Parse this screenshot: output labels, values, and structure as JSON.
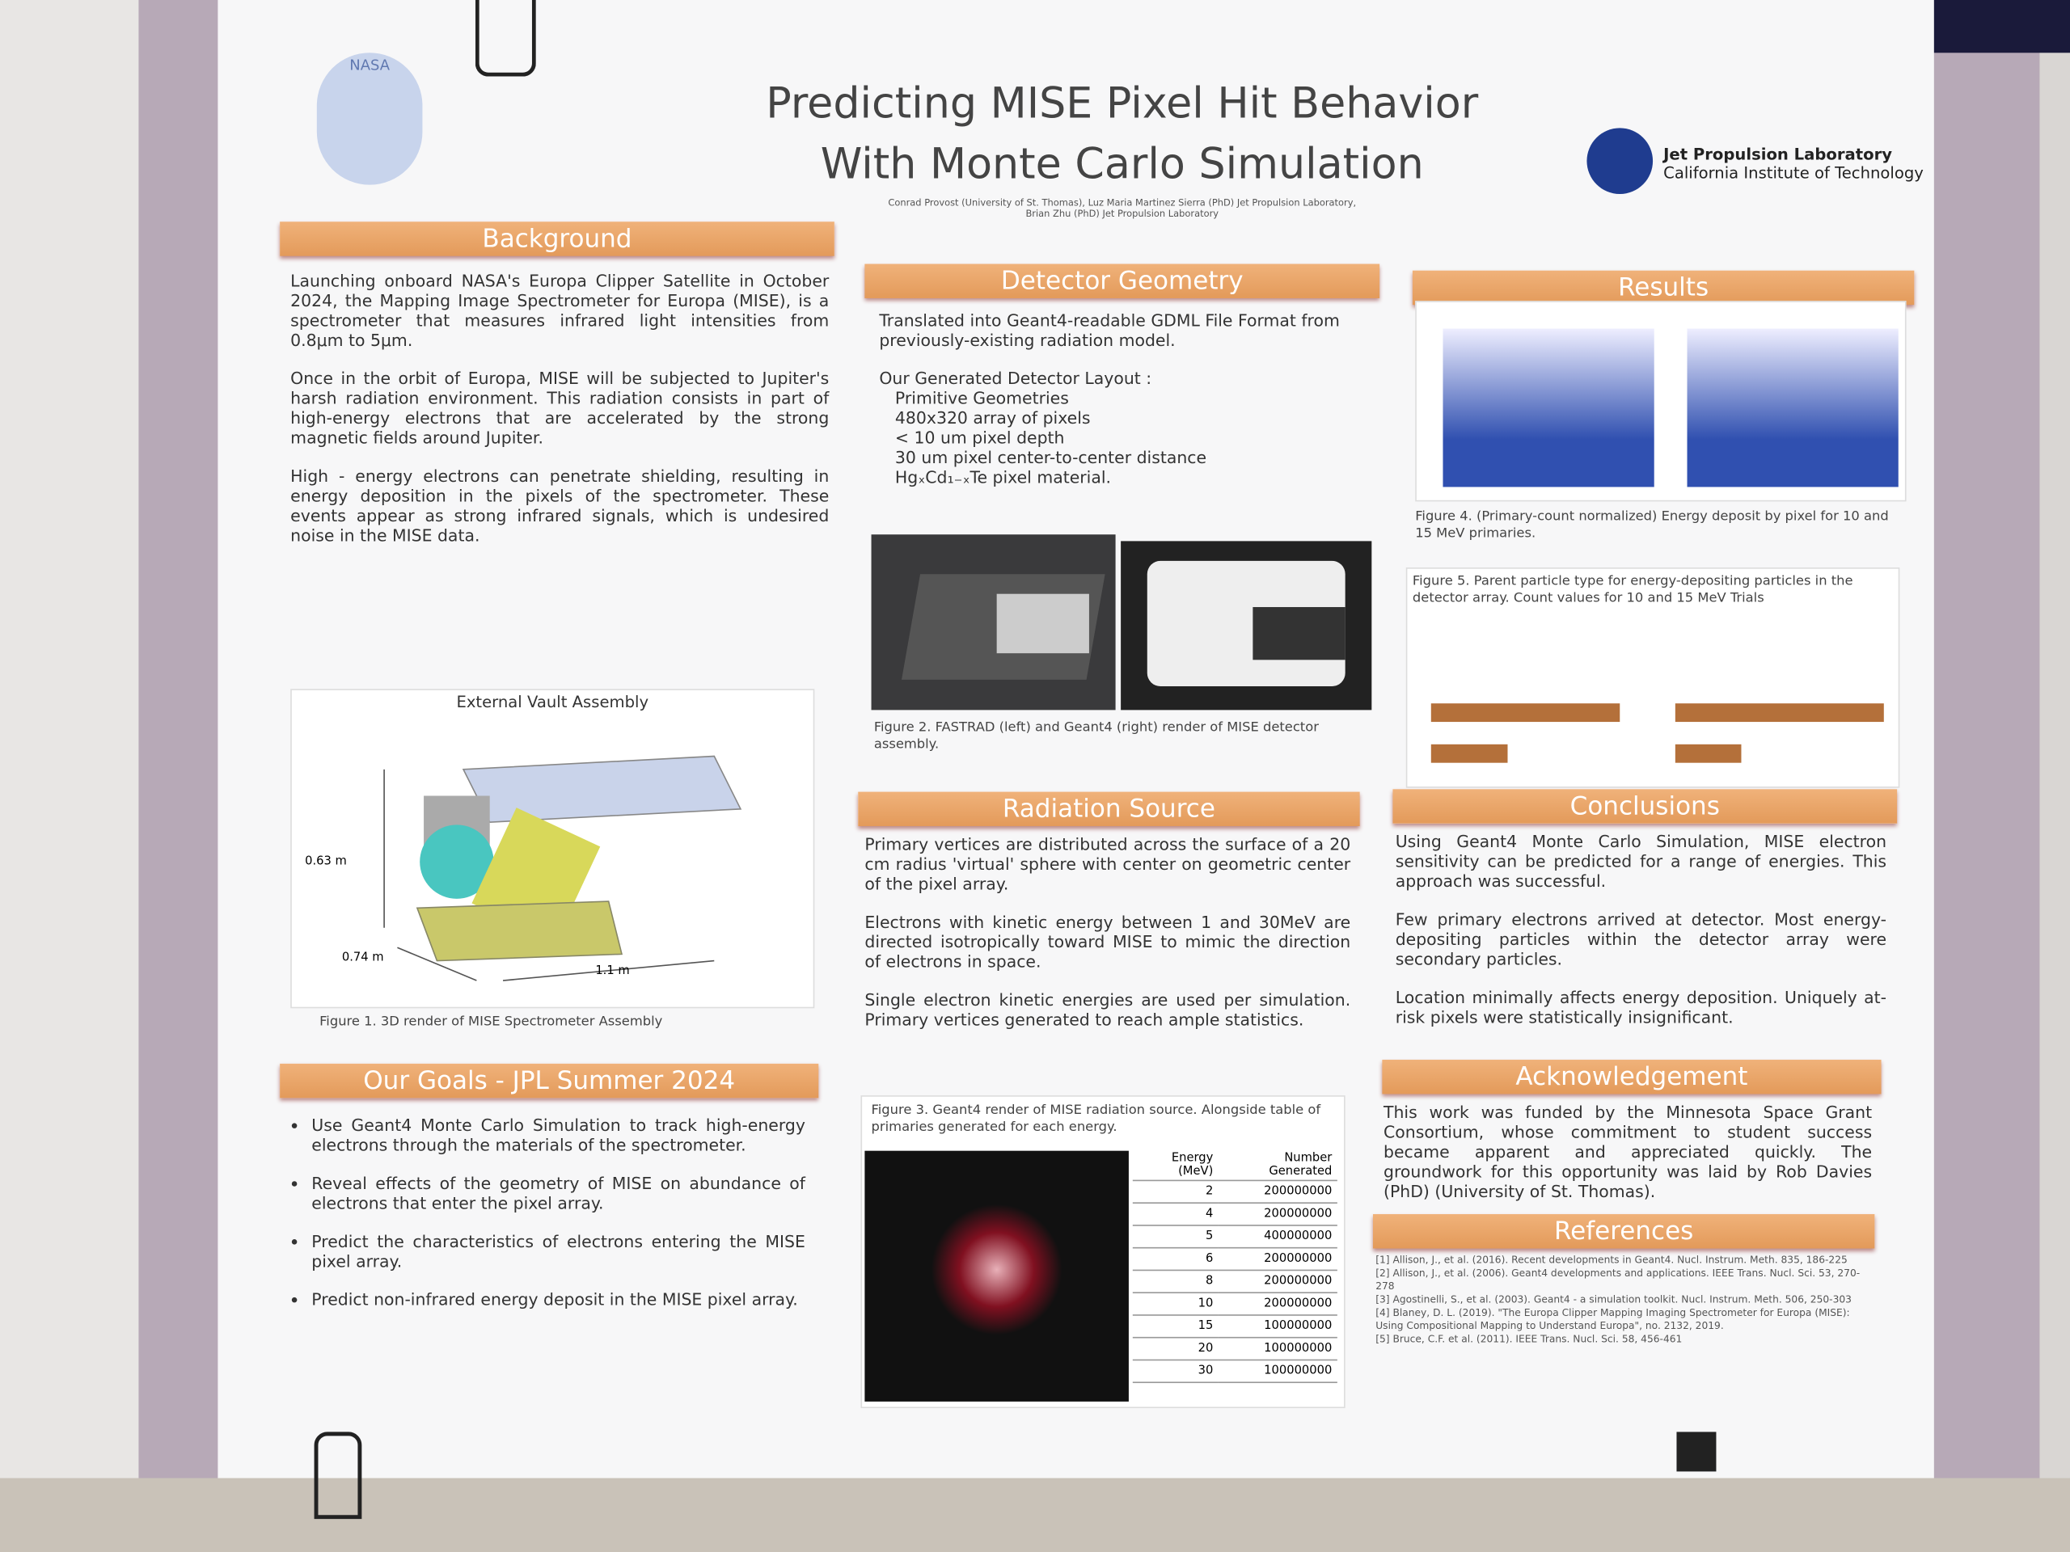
{
  "header": {
    "title_lines": [
      "Predicting MISE Pixel Hit Behavior",
      "With Monte Carlo Simulation"
    ],
    "authors": [
      "Conrad Provost (University of St. Thomas), Luz Maria Martinez Sierra (PhD) Jet Propulsion Laboratory,",
      "Brian Zhu (PhD) Jet Propulsion Laboratory"
    ],
    "institution": [
      "Jet Propulsion Laboratory",
      "California Institute of Technology"
    ],
    "logo_text": "NASA"
  },
  "background": {
    "heading": "Background",
    "paragraphs": [
      "Launching onboard NASA's Europa Clipper Satellite in October 2024, the Mapping Image Spectrometer for Europa (MISE), is a spectrometer that measures infrared light intensities from 0.8μm to 5μm.",
      "Once in the orbit of Europa, MISE will be subjected to Jupiter's harsh radiation environment. This radiation consists in part of high-energy electrons that are accelerated by the strong magnetic fields around Jupiter.",
      "High - energy electrons can penetrate shielding, resulting in energy deposition in the pixels of the spectrometer. These events appear as strong infrared signals, which is undesired noise in the MISE data."
    ],
    "figure": {
      "title": "External Vault Assembly",
      "dims": [
        "0.63 m",
        "0.74 m",
        "1.1 m"
      ],
      "caption": "Figure 1. 3D render of MISE Spectrometer Assembly"
    }
  },
  "goals": {
    "heading": "Our Goals - JPL Summer 2024",
    "items": [
      "Use Geant4 Monte Carlo Simulation to track high-energy electrons through the materials of the spectrometer.",
      "Reveal effects of the geometry of MISE on abundance of electrons that enter the pixel array.",
      "Predict the characteristics of electrons entering the MISE pixel array.",
      "Predict non-infrared energy deposit in the MISE pixel array."
    ]
  },
  "detector": {
    "heading": "Detector Geometry",
    "intro": "Translated into Geant4-readable GDML File Format from previously-existing radiation model.",
    "layout_title": "Our Generated Detector Layout :",
    "items": [
      "Primitive Geometries",
      "480x320 array of pixels",
      "< 10 um pixel depth",
      "30 um pixel center-to-center distance",
      "HgₓCd₁₋ₓTe pixel material."
    ],
    "caption": "Figure 2. FASTRAD (left) and Geant4 (right) render of MISE detector assembly."
  },
  "radiation": {
    "heading": "Radiation Source",
    "paragraphs": [
      "Primary vertices are distributed across the surface of a 20 cm radius 'virtual' sphere with center on geometric center of the pixel array.",
      "Electrons with kinetic energy between 1 and 30MeV are directed isotropically toward MISE to mimic the direction of electrons in space.",
      "Single electron kinetic energies are used per simulation. Primary vertices generated to reach ample statistics."
    ],
    "caption": "Figure 3. Geant4 render of MISE radiation source. Alongside table of primaries generated for each energy.",
    "table": {
      "header": [
        "Energy (MeV)",
        "Number Generated"
      ],
      "rows": [
        [
          "2",
          "200000000"
        ],
        [
          "4",
          "200000000"
        ],
        [
          "5",
          "400000000"
        ],
        [
          "6",
          "200000000"
        ],
        [
          "8",
          "200000000"
        ],
        [
          "10",
          "200000000"
        ],
        [
          "15",
          "100000000"
        ],
        [
          "20",
          "100000000"
        ],
        [
          "30",
          "100000000"
        ]
      ]
    }
  },
  "results": {
    "heading": "Results",
    "caption4": "Figure 4. (Primary-count normalized) Energy deposit by pixel for 10 and 15 MeV primaries.",
    "caption5": "Figure 5. Parent particle type for energy-depositing particles in the detector array. Count values for 10 and 15 MeV Trials"
  },
  "conclusions": {
    "heading": "Conclusions",
    "items": [
      "Using Geant4 Monte Carlo Simulation, MISE electron sensitivity can be predicted for a range of energies. This approach was successful.",
      "Few primary electrons arrived at detector. Most energy-depositing particles within the detector array were secondary particles.",
      "Location minimally affects energy deposition. Uniquely at-risk pixels were statistically insignificant."
    ]
  },
  "acknowledgement": {
    "heading": "Acknowledgement",
    "text": "This work was funded by the Minnesota Space Grant Consortium, whose commitment to student success became apparent and appreciated quickly. The groundwork for this opportunity was laid by Rob Davies (PhD) (University of St. Thomas)."
  },
  "references": {
    "heading": "References",
    "items": [
      "[1] Allison, J., et al. (2016). Recent developments in Geant4. Nucl. Instrum. Meth. 835, 186-225",
      "[2] Allison, J., et al. (2006). Geant4 developments and applications. IEEE Trans. Nucl. Sci. 53, 270-278",
      "[3] Agostinelli, S., et al. (2003). Geant4 - a simulation toolkit. Nucl. Instrum. Meth. 506, 250-303",
      "[4] Blaney, D. L. (2019). \"The Europa Clipper Mapping Imaging Spectrometer for Europa (MISE): Using Compositional Mapping to Understand Europa\", no. 2132, 2019.",
      "[5] Bruce, C.F. et al. (2011). IEEE Trans. Nucl. Sci. 58, 456-461"
    ]
  }
}
